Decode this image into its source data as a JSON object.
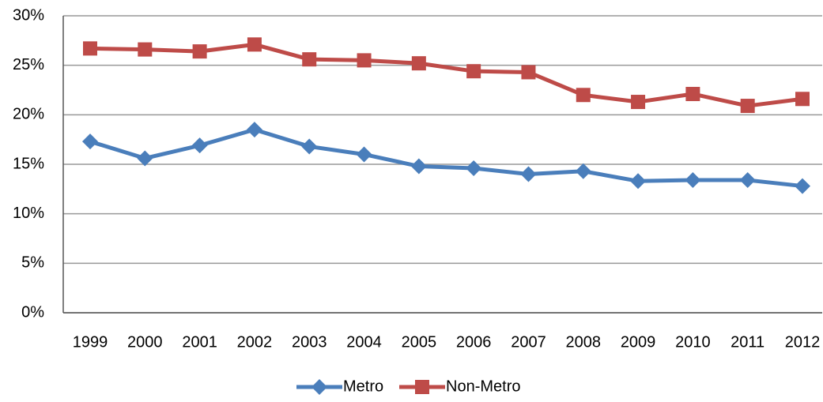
{
  "chart_data": {
    "type": "line",
    "categories": [
      "1999",
      "2000",
      "2001",
      "2002",
      "2003",
      "2004",
      "2005",
      "2006",
      "2007",
      "2008",
      "2009",
      "2010",
      "2011",
      "2012"
    ],
    "series": [
      {
        "name": "Metro",
        "color": "#4a7ebb",
        "marker": "diamond",
        "values": [
          17.3,
          15.6,
          16.9,
          18.5,
          16.8,
          16.0,
          14.8,
          14.6,
          14.0,
          14.3,
          13.3,
          13.4,
          13.4,
          12.8
        ]
      },
      {
        "name": "Non-Metro",
        "color": "#be4b48",
        "marker": "square",
        "values": [
          26.7,
          26.6,
          26.4,
          27.1,
          25.6,
          25.5,
          25.2,
          24.4,
          24.3,
          22.0,
          21.3,
          22.1,
          20.9,
          21.6
        ]
      }
    ],
    "ylim": [
      0,
      30
    ],
    "yticks": [
      {
        "value": 0,
        "label": "0%"
      },
      {
        "value": 5,
        "label": "5%"
      },
      {
        "value": 10,
        "label": "10%"
      },
      {
        "value": 15,
        "label": "15%"
      },
      {
        "value": 20,
        "label": "20%"
      },
      {
        "value": 25,
        "label": "25%"
      },
      {
        "value": 30,
        "label": "30%"
      }
    ],
    "grid": true,
    "legend": "bottom"
  }
}
